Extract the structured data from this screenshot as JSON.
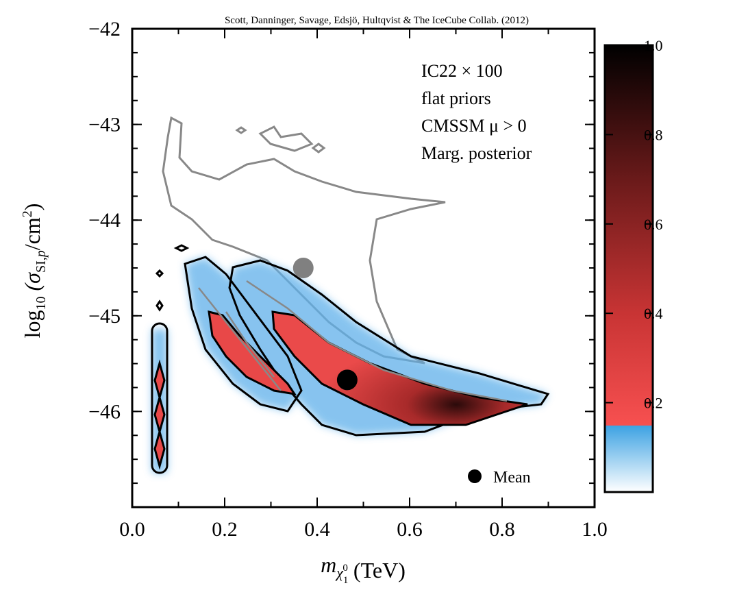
{
  "chart_data": {
    "type": "contour",
    "credit": "Scott, Danninger, Savage, Edsjö, Hultqvist & The IceCube Collab. (2012)",
    "annotations": [
      "IC22 × 100",
      "flat priors",
      "CMSSM μ > 0",
      "Marg. posterior"
    ],
    "x_label": [
      "m",
      "χ",
      "1",
      "0",
      "(TeV)"
    ],
    "y_label": [
      "log",
      "10",
      "(σ",
      "SI,",
      "p",
      "/cm",
      "2",
      ")"
    ],
    "xlim": [
      0,
      1
    ],
    "xticks": [
      {
        "value": 0,
        "label": "0.0"
      },
      0.2,
      0.4,
      0.6,
      0.8,
      {
        "value": 1,
        "label": "1.0"
      }
    ],
    "ylim": [
      -47,
      -42
    ],
    "yticks": [
      {
        "value": -42,
        "label": "−42"
      },
      {
        "value": -43,
        "label": "−43"
      },
      {
        "value": -44,
        "label": "−44"
      },
      {
        "value": -45,
        "label": "−45"
      },
      {
        "value": -46,
        "label": "−46"
      }
    ],
    "series": [
      {
        "name": "Mean",
        "color": "#000000",
        "x": [
          0.465,
          0.37
        ],
        "values": [
          -45.67,
          -44.5
        ],
        "colors": [
          "#000000",
          "#808080"
        ]
      }
    ],
    "colorbar": {
      "lim": [
        0,
        1
      ],
      "ticks": [
        0.2,
        0.4,
        0.6,
        0.8,
        {
          "value": 1,
          "label": "1.0"
        }
      ]
    }
  }
}
